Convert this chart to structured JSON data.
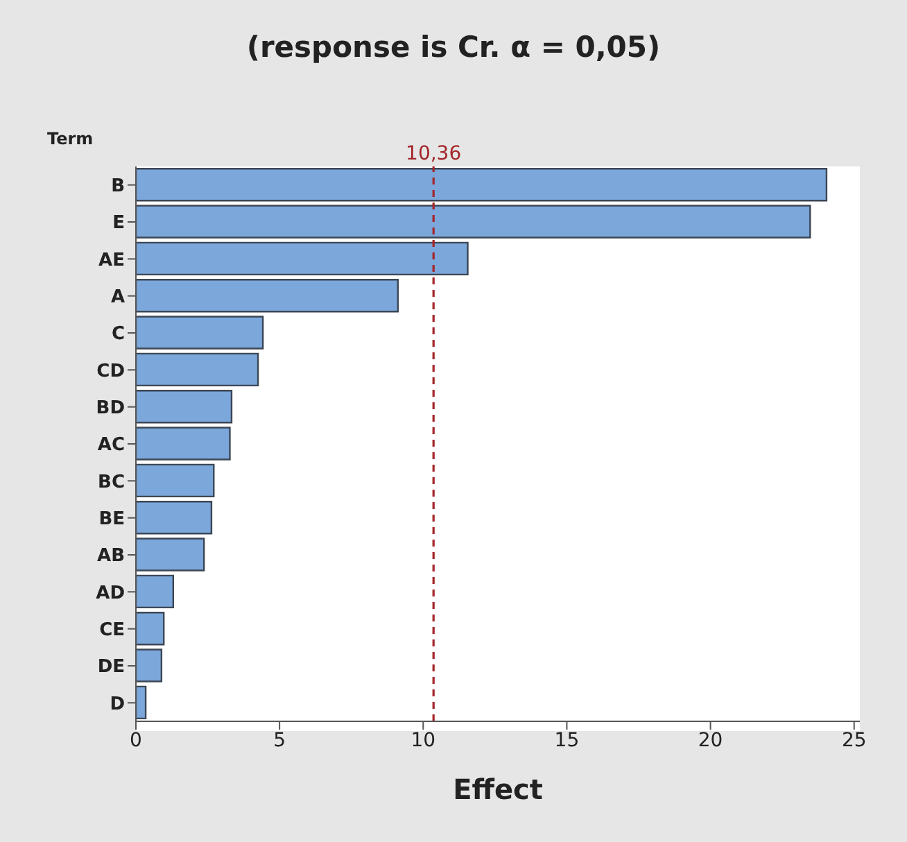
{
  "chart_data": {
    "type": "bar",
    "orientation": "horizontal",
    "title": "(response is Cr. α = 0,05)",
    "ylabel": "Term",
    "xlabel": "Effect",
    "categories": [
      "B",
      "E",
      "AE",
      "A",
      "C",
      "CD",
      "BD",
      "AC",
      "BC",
      "BE",
      "AB",
      "AD",
      "CE",
      "DE",
      "D"
    ],
    "values": [
      24.04,
      23.47,
      11.55,
      9.12,
      4.42,
      4.25,
      3.33,
      3.27,
      2.71,
      2.63,
      2.37,
      1.3,
      0.97,
      0.89,
      0.34
    ],
    "color": "#7ba7db",
    "xlim": [
      0,
      25.2
    ],
    "xticks": [
      0,
      5,
      10,
      15,
      20,
      25
    ],
    "ref_lines": [
      {
        "axis": "x",
        "value": 10.36,
        "label": "10,36",
        "color": "#a3262a",
        "line_style": "dashed"
      }
    ]
  }
}
